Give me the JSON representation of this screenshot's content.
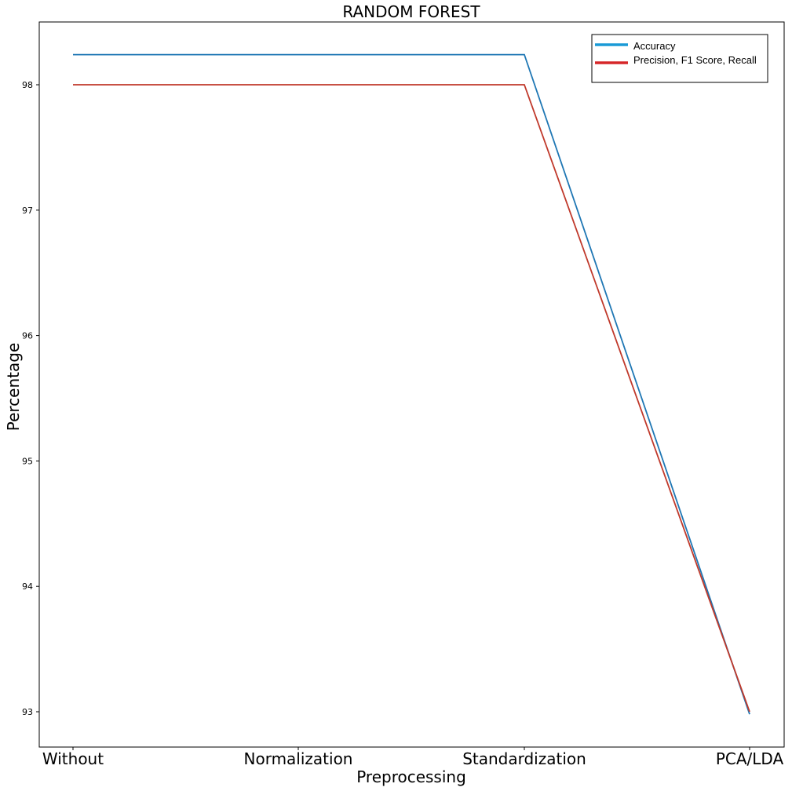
{
  "chart_data": {
    "type": "line",
    "title": "RANDOM FOREST",
    "xlabel": "Preprocessing",
    "ylabel": "Percentage",
    "categories": [
      "Without",
      "Normalization",
      "Standardization",
      "PCA/LDA"
    ],
    "y_ticks": [
      "93",
      "94",
      "95",
      "96",
      "97",
      "98"
    ],
    "ylim": [
      92.5,
      98.5
    ],
    "grid": false,
    "legend_position": "top-right",
    "series": [
      {
        "name": "Accuracy",
        "values": [
          98.24,
          98.24,
          98.24,
          92.98
        ],
        "color": "#1f77b4",
        "legend_color": "#1a9ad6"
      },
      {
        "name": "Precision, F1 Score, Recall",
        "values": [
          98.0,
          98.0,
          98.0,
          93.0
        ],
        "color": "#c0392b",
        "legend_color": "#d62728"
      }
    ]
  }
}
